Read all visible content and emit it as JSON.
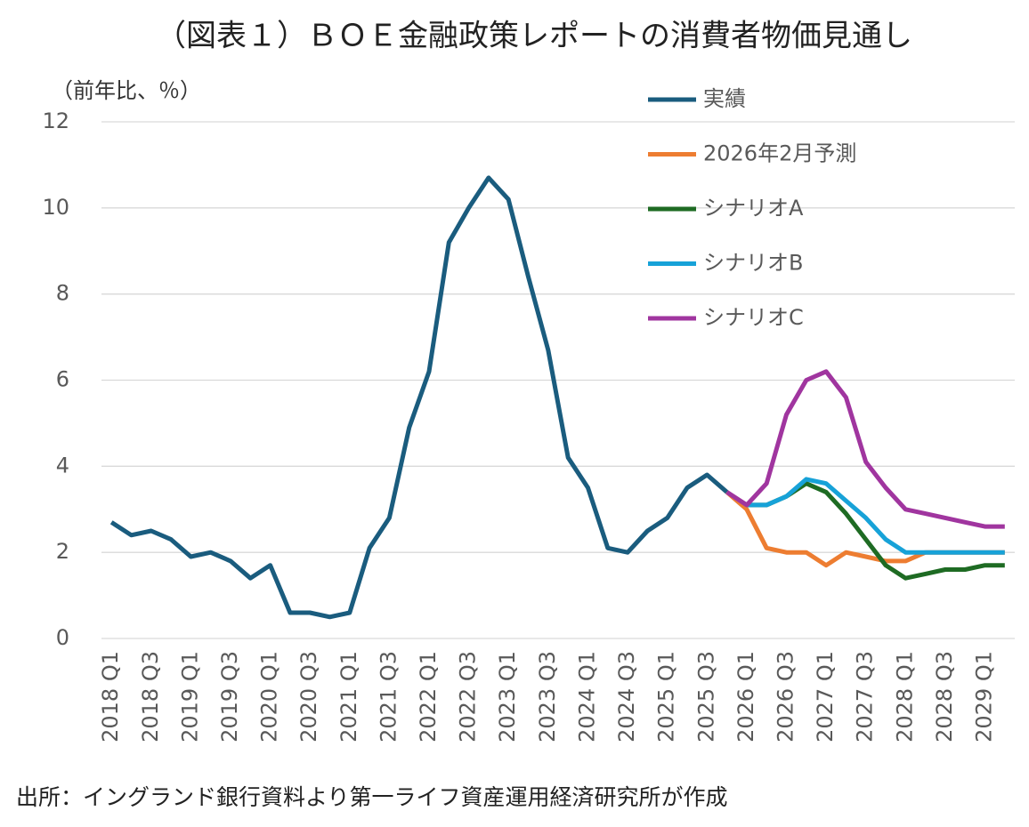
{
  "chart_data": {
    "type": "line",
    "title": "（図表１）ＢＯＥ金融政策レポートの消費者物価見通し",
    "y_label": "（前年比、％）",
    "source": "出所：イングランド銀行資料より第一ライフ資産運用経済研究所が作成",
    "categories": [
      "2018 Q1",
      null,
      "2018 Q3",
      null,
      "2019 Q1",
      null,
      "2019 Q3",
      null,
      "2020 Q1",
      null,
      "2020 Q3",
      null,
      "2021 Q1",
      null,
      "2021 Q3",
      null,
      "2022 Q1",
      null,
      "2022 Q3",
      null,
      "2023 Q1",
      null,
      "2023 Q3",
      null,
      "2024 Q1",
      null,
      "2024 Q3",
      null,
      "2025 Q1",
      null,
      "2025 Q3",
      null,
      "2026 Q1",
      null,
      "2026 Q3",
      null,
      "2027 Q1",
      null,
      "2027 Q3",
      null,
      "2028 Q1",
      null,
      "2028 Q3",
      null,
      "2029 Q1",
      null
    ],
    "series": [
      {
        "name": "実績",
        "color": "#1a5c7e",
        "values": [
          2.7,
          2.4,
          2.5,
          2.3,
          1.9,
          2.0,
          1.8,
          1.4,
          1.7,
          0.6,
          0.6,
          0.5,
          0.6,
          2.1,
          2.8,
          4.9,
          6.2,
          9.2,
          10.0,
          10.7,
          10.2,
          8.4,
          6.7,
          4.2,
          3.5,
          2.1,
          2.0,
          2.5,
          2.8,
          3.5,
          3.8,
          3.4,
          null,
          null,
          null,
          null,
          null,
          null,
          null,
          null,
          null,
          null,
          null,
          null,
          null,
          null
        ]
      },
      {
        "name": "2026年2月予測",
        "color": "#ed7d31",
        "values": [
          null,
          null,
          null,
          null,
          null,
          null,
          null,
          null,
          null,
          null,
          null,
          null,
          null,
          null,
          null,
          null,
          null,
          null,
          null,
          null,
          null,
          null,
          null,
          null,
          null,
          null,
          null,
          null,
          null,
          null,
          null,
          3.4,
          3.0,
          2.1,
          2.0,
          2.0,
          1.7,
          2.0,
          1.9,
          1.8,
          1.8,
          2.0,
          2.0,
          2.0,
          2.0,
          2.0
        ]
      },
      {
        "name": "シナリオA",
        "color": "#1e6b23",
        "values": [
          null,
          null,
          null,
          null,
          null,
          null,
          null,
          null,
          null,
          null,
          null,
          null,
          null,
          null,
          null,
          null,
          null,
          null,
          null,
          null,
          null,
          null,
          null,
          null,
          null,
          null,
          null,
          null,
          null,
          null,
          null,
          null,
          3.1,
          3.1,
          3.3,
          3.6,
          3.4,
          2.9,
          2.3,
          1.7,
          1.4,
          1.5,
          1.6,
          1.6,
          1.7,
          1.7
        ]
      },
      {
        "name": "シナリオB",
        "color": "#17a2d8",
        "values": [
          null,
          null,
          null,
          null,
          null,
          null,
          null,
          null,
          null,
          null,
          null,
          null,
          null,
          null,
          null,
          null,
          null,
          null,
          null,
          null,
          null,
          null,
          null,
          null,
          null,
          null,
          null,
          null,
          null,
          null,
          null,
          null,
          3.1,
          3.1,
          3.3,
          3.7,
          3.6,
          3.2,
          2.8,
          2.3,
          2.0,
          2.0,
          2.0,
          2.0,
          2.0,
          2.0
        ]
      },
      {
        "name": "シナリオC",
        "color": "#a0359f",
        "values": [
          null,
          null,
          null,
          null,
          null,
          null,
          null,
          null,
          null,
          null,
          null,
          null,
          null,
          null,
          null,
          null,
          null,
          null,
          null,
          null,
          null,
          null,
          null,
          null,
          null,
          null,
          null,
          null,
          null,
          null,
          null,
          3.4,
          3.1,
          3.6,
          5.2,
          6.0,
          6.2,
          5.6,
          4.1,
          3.5,
          3.0,
          2.9,
          2.8,
          2.7,
          2.6,
          2.6
        ]
      }
    ],
    "ylim": [
      0,
      12
    ],
    "yticks": [
      0,
      2,
      4,
      6,
      8,
      10,
      12
    ],
    "grid": true
  }
}
